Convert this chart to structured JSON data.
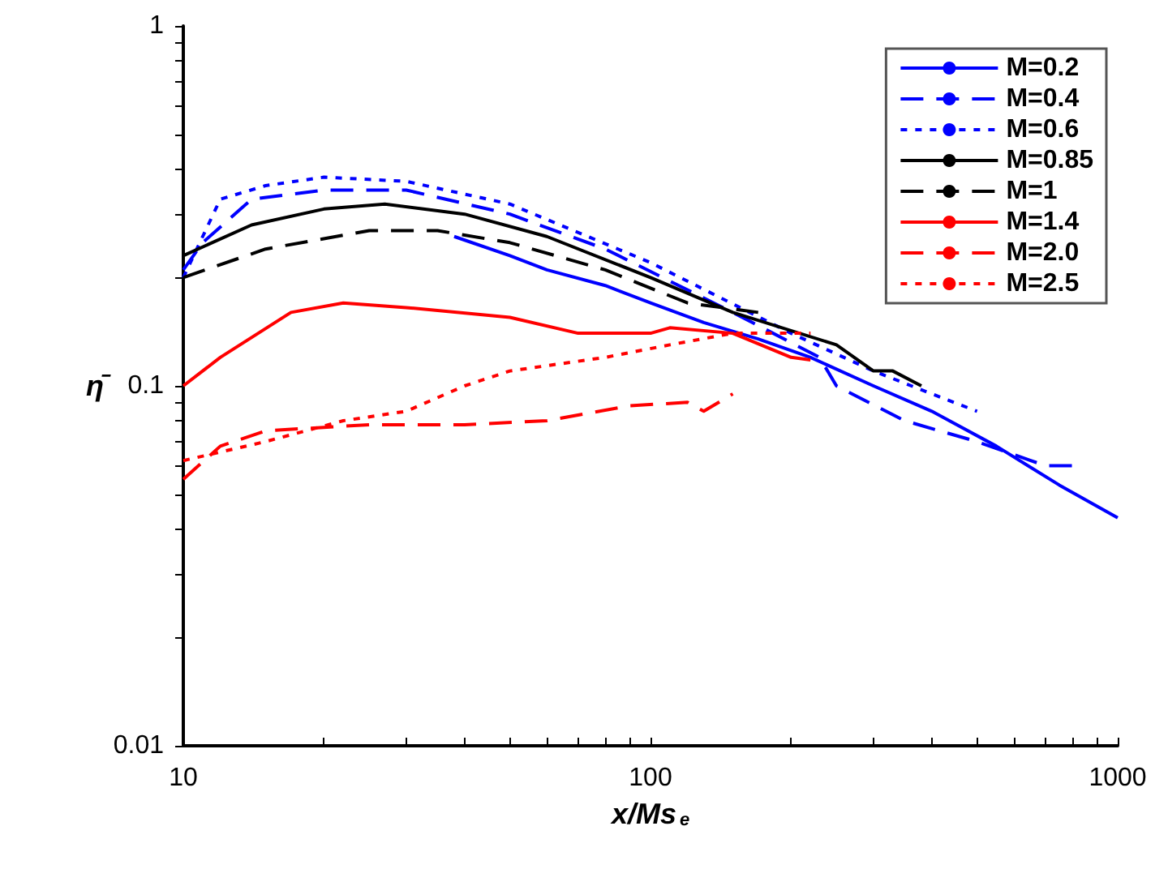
{
  "chart_data": {
    "type": "line",
    "xlabel": "x/Ms$_{e}$",
    "ylabel": "η̄",
    "log": "xy",
    "grid": false,
    "legend": "top right",
    "marker": "none",
    "xlim": [
      10,
      1000
    ],
    "ylim": [
      0.01,
      1
    ],
    "xticks": [
      10,
      {
        "value": 20,
        "label": null
      },
      {
        "value": 30,
        "label": null
      },
      {
        "value": 40,
        "label": null
      },
      {
        "value": 50,
        "label": null
      },
      {
        "value": 60,
        "label": null
      },
      {
        "value": 70,
        "label": null
      },
      {
        "value": 80,
        "label": null
      },
      {
        "value": 90,
        "label": null
      },
      100,
      {
        "value": 200,
        "label": null
      },
      {
        "value": 300,
        "label": null
      },
      {
        "value": 400,
        "label": null
      },
      {
        "value": 500,
        "label": null
      },
      {
        "value": 600,
        "label": null
      },
      {
        "value": 700,
        "label": null
      },
      {
        "value": 800,
        "label": null
      },
      {
        "value": 900,
        "label": null
      },
      1000
    ],
    "yticks": [
      0.01,
      {
        "value": 0.02,
        "label": null
      },
      {
        "value": 0.03,
        "label": null
      },
      {
        "value": 0.04,
        "label": null
      },
      {
        "value": 0.05,
        "label": null
      },
      {
        "value": 0.06,
        "label": null
      },
      {
        "value": 0.07,
        "label": null
      },
      {
        "value": 0.08,
        "label": null
      },
      {
        "value": 0.09,
        "label": null
      },
      0.1,
      {
        "value": 0.2,
        "label": null
      },
      {
        "value": 0.3,
        "label": null
      },
      {
        "value": 0.4,
        "label": null
      },
      {
        "value": 0.5,
        "label": null
      },
      {
        "value": 0.6,
        "label": null
      },
      {
        "value": 0.7,
        "label": null
      },
      {
        "value": 0.8,
        "label": null
      },
      {
        "value": 0.9,
        "label": null
      },
      1
    ],
    "series": [
      {
        "name": "M=0.2",
        "color": "#0000ff",
        "line_style": "solid",
        "x": [
          38,
          50,
          60,
          80,
          100,
          130,
          170,
          220,
          300,
          400,
          550,
          750,
          1000
        ],
        "values": [
          0.26,
          0.23,
          0.21,
          0.19,
          0.17,
          0.15,
          0.135,
          0.12,
          0.1,
          0.085,
          0.068,
          0.053,
          0.043
        ]
      },
      {
        "name": "M=0.4",
        "color": "#0000ff",
        "line_style": "dashed",
        "x": [
          10,
          11,
          14,
          20,
          30,
          50,
          80,
          150,
          230,
          250,
          350,
          500,
          700,
          800
        ],
        "values": [
          0.21,
          0.25,
          0.33,
          0.35,
          0.35,
          0.3,
          0.24,
          0.16,
          0.12,
          0.1,
          0.08,
          0.07,
          0.06,
          0.06
        ]
      },
      {
        "name": "M=0.6",
        "color": "#0000ff",
        "line_style": "dotted",
        "x": [
          10,
          12,
          15,
          20,
          30,
          50,
          100,
          200,
          300,
          400,
          500
        ],
        "values": [
          0.2,
          0.33,
          0.36,
          0.38,
          0.37,
          0.32,
          0.22,
          0.14,
          0.11,
          0.095,
          0.085
        ]
      },
      {
        "name": "M=0.85",
        "color": "#000000",
        "line_style": "solid",
        "x": [
          10,
          14,
          20,
          27,
          40,
          60,
          100,
          150,
          250,
          300,
          330,
          380
        ],
        "values": [
          0.23,
          0.28,
          0.31,
          0.32,
          0.3,
          0.26,
          0.2,
          0.16,
          0.13,
          0.11,
          0.11,
          0.1
        ]
      },
      {
        "name": "M=1",
        "color": "#000000",
        "line_style": "dashed",
        "x": [
          10,
          15,
          25,
          35,
          50,
          80,
          120,
          170
        ],
        "values": [
          0.2,
          0.24,
          0.27,
          0.27,
          0.25,
          0.21,
          0.17,
          0.16
        ]
      },
      {
        "name": "M=1.4",
        "color": "#ff0000",
        "line_style": "solid",
        "x": [
          10,
          12,
          17,
          22,
          30,
          50,
          70,
          100,
          110,
          150,
          200,
          220
        ],
        "values": [
          0.1,
          0.12,
          0.16,
          0.17,
          0.165,
          0.155,
          0.14,
          0.14,
          0.145,
          0.14,
          0.12,
          0.118
        ]
      },
      {
        "name": "M=2.0",
        "color": "#ff0000",
        "line_style": "dashed",
        "x": [
          10,
          12,
          15,
          25,
          40,
          60,
          90,
          120,
          130,
          150
        ],
        "values": [
          0.055,
          0.068,
          0.075,
          0.078,
          0.078,
          0.08,
          0.088,
          0.09,
          0.085,
          0.095
        ]
      },
      {
        "name": "M=2.5",
        "color": "#ff0000",
        "line_style": "dotted",
        "x": [
          10,
          15,
          22,
          30,
          40,
          50,
          80,
          110,
          150,
          180,
          220
        ],
        "values": [
          0.062,
          0.07,
          0.08,
          0.085,
          0.1,
          0.11,
          0.12,
          0.13,
          0.14,
          0.14,
          0.14
        ]
      }
    ]
  }
}
